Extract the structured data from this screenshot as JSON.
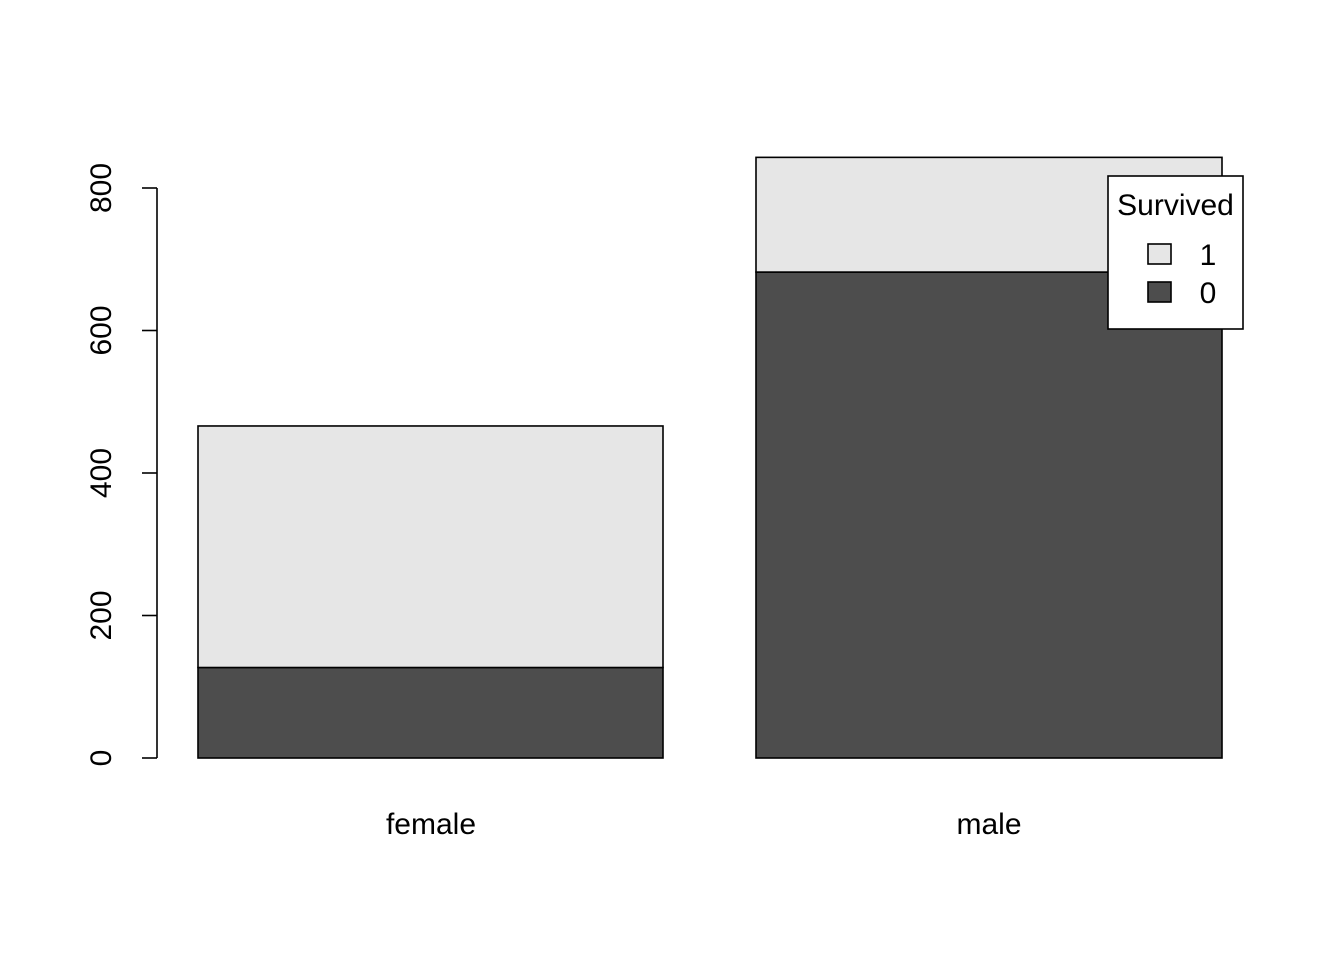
{
  "chart_data": {
    "type": "bar",
    "stacked": true,
    "categories": [
      "female",
      "male"
    ],
    "series": [
      {
        "name": "0",
        "values": [
          127,
          682
        ],
        "color": "#4d4d4d"
      },
      {
        "name": "1",
        "values": [
          339,
          161
        ],
        "color": "#e6e6e6"
      }
    ],
    "title": "",
    "xlabel": "",
    "ylabel": "",
    "ylim": [
      0,
      843
    ],
    "yticks": [
      0,
      200,
      400,
      600,
      800
    ],
    "ytick_labels": [
      "0",
      "200",
      "400",
      "600",
      "800"
    ],
    "grid": false,
    "legend": {
      "title": "Survived",
      "placement": "top-right",
      "entries": [
        {
          "label": "1",
          "color": "#e6e6e6"
        },
        {
          "label": "0",
          "color": "#4d4d4d"
        }
      ]
    }
  }
}
